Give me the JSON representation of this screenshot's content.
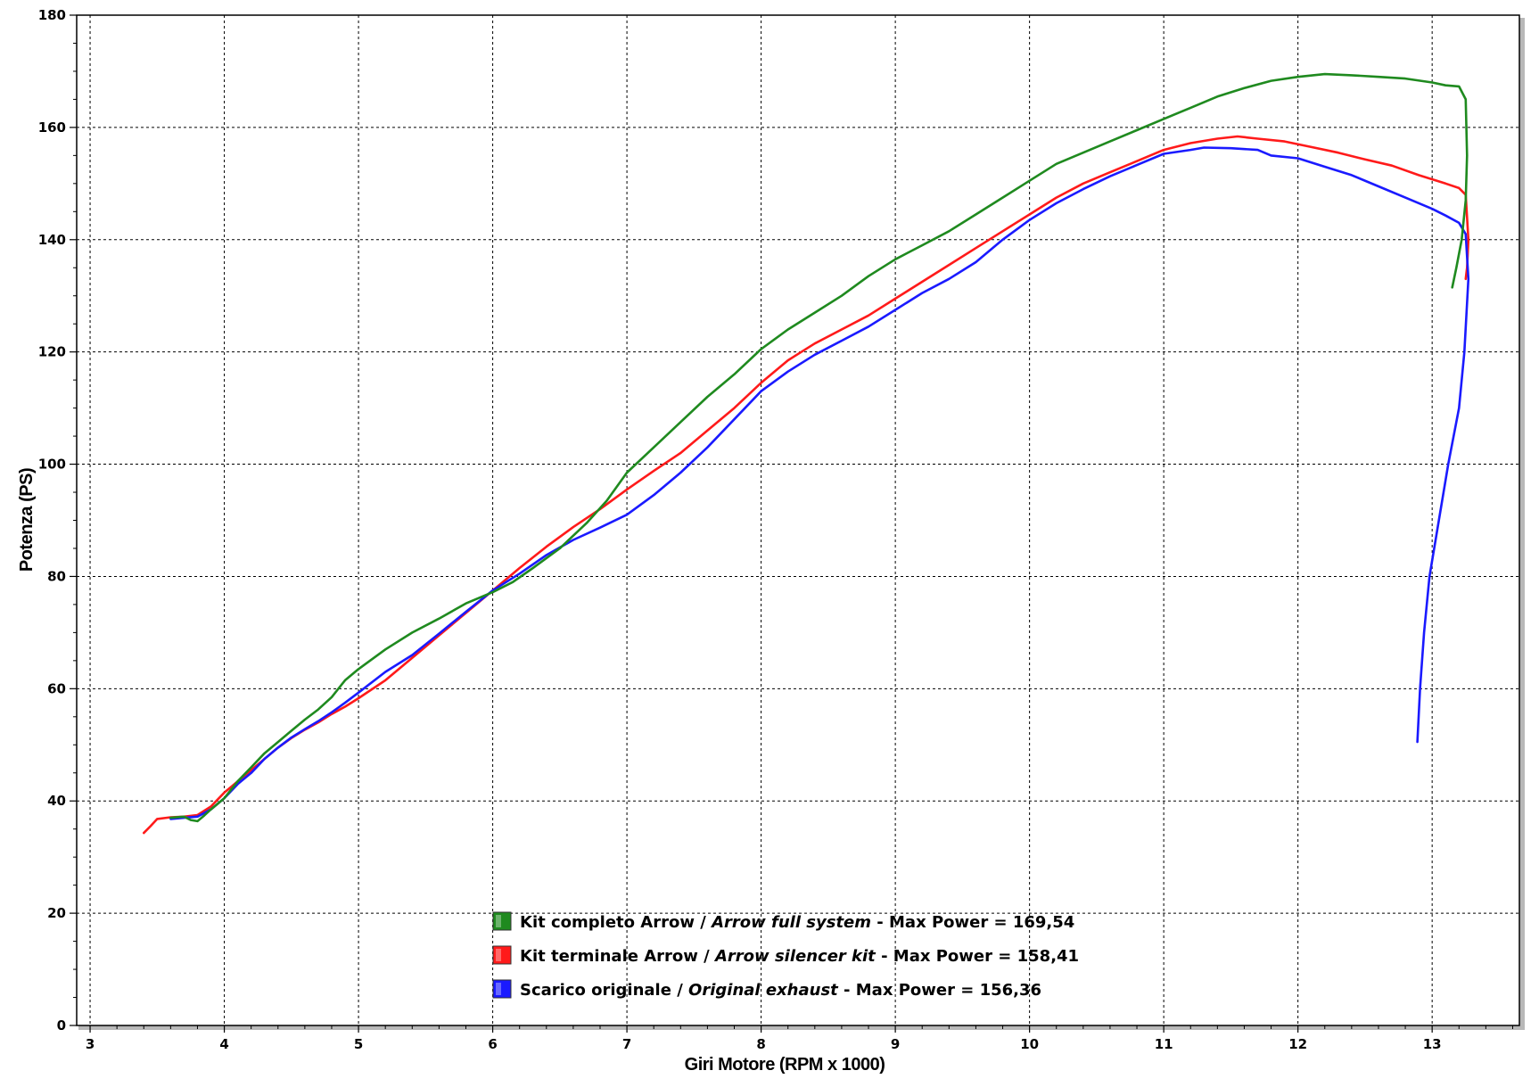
{
  "chart_data": {
    "type": "line",
    "xlabel": "Giri Motore (RPM x 1000)",
    "ylabel": "Potenza (PS)",
    "xlim": [
      2.9,
      13.65
    ],
    "ylim": [
      0,
      180
    ],
    "x_ticks": [
      3,
      4,
      5,
      6,
      7,
      8,
      9,
      10,
      11,
      12,
      13
    ],
    "y_ticks": [
      0,
      20,
      40,
      60,
      80,
      100,
      120,
      140,
      160,
      180
    ],
    "grid": true,
    "legend_position": "bottom-center",
    "series": [
      {
        "name": "Kit completo Arrow",
        "name_en": "Arrow full system",
        "max_label": "Max Power = 169,54",
        "color": "#1f8a1f",
        "points": [
          [
            3.6,
            37
          ],
          [
            3.7,
            37.2
          ],
          [
            3.75,
            36.6
          ],
          [
            3.8,
            36.4
          ],
          [
            3.85,
            37.4
          ],
          [
            3.9,
            38.5
          ],
          [
            4.0,
            40.5
          ],
          [
            4.1,
            43.5
          ],
          [
            4.2,
            46
          ],
          [
            4.3,
            48.5
          ],
          [
            4.4,
            50.5
          ],
          [
            4.5,
            52.5
          ],
          [
            4.6,
            54.5
          ],
          [
            4.7,
            56.3
          ],
          [
            4.8,
            58.5
          ],
          [
            4.9,
            61.5
          ],
          [
            5.0,
            63.5
          ],
          [
            5.2,
            67
          ],
          [
            5.4,
            70
          ],
          [
            5.6,
            72.5
          ],
          [
            5.8,
            75.2
          ],
          [
            6.0,
            77.2
          ],
          [
            6.15,
            79
          ],
          [
            6.3,
            81.5
          ],
          [
            6.5,
            85
          ],
          [
            6.7,
            89.5
          ],
          [
            6.85,
            93.5
          ],
          [
            7.0,
            98.5
          ],
          [
            7.2,
            103
          ],
          [
            7.4,
            107.5
          ],
          [
            7.6,
            112
          ],
          [
            7.8,
            116
          ],
          [
            8.0,
            120.5
          ],
          [
            8.2,
            124
          ],
          [
            8.4,
            127
          ],
          [
            8.6,
            130
          ],
          [
            8.8,
            133.5
          ],
          [
            9.0,
            136.5
          ],
          [
            9.2,
            139
          ],
          [
            9.4,
            141.5
          ],
          [
            9.6,
            144.5
          ],
          [
            9.8,
            147.5
          ],
          [
            10.0,
            150.5
          ],
          [
            10.2,
            153.5
          ],
          [
            10.4,
            155.5
          ],
          [
            10.6,
            157.5
          ],
          [
            10.8,
            159.5
          ],
          [
            11.0,
            161.5
          ],
          [
            11.2,
            163.5
          ],
          [
            11.4,
            165.5
          ],
          [
            11.6,
            167
          ],
          [
            11.8,
            168.3
          ],
          [
            12.0,
            169
          ],
          [
            12.2,
            169.5
          ],
          [
            12.4,
            169.3
          ],
          [
            12.6,
            169
          ],
          [
            12.8,
            168.7
          ],
          [
            13.0,
            168
          ],
          [
            13.1,
            167.5
          ],
          [
            13.2,
            167.3
          ],
          [
            13.25,
            165
          ],
          [
            13.26,
            155
          ],
          [
            13.25,
            147
          ],
          [
            13.22,
            140
          ],
          [
            13.18,
            135
          ],
          [
            13.15,
            131.5
          ]
        ]
      },
      {
        "name": "Kit terminale Arrow",
        "name_en": "Arrow silencer kit",
        "max_label": "Max Power = 158,41",
        "color": "#ff1a1a",
        "points": [
          [
            3.4,
            34.3
          ],
          [
            3.45,
            35.5
          ],
          [
            3.5,
            36.8
          ],
          [
            3.6,
            37.1
          ],
          [
            3.7,
            37.2
          ],
          [
            3.8,
            37.5
          ],
          [
            3.9,
            39
          ],
          [
            4.0,
            41.5
          ],
          [
            4.1,
            43.5
          ],
          [
            4.2,
            45.5
          ],
          [
            4.3,
            47.5
          ],
          [
            4.4,
            49.5
          ],
          [
            4.5,
            51.2
          ],
          [
            4.6,
            52.7
          ],
          [
            4.7,
            54
          ],
          [
            4.8,
            55.5
          ],
          [
            4.9,
            56.8
          ],
          [
            5.0,
            58.3
          ],
          [
            5.2,
            61.5
          ],
          [
            5.4,
            65.5
          ],
          [
            5.6,
            69.5
          ],
          [
            5.8,
            73.5
          ],
          [
            6.0,
            77.5
          ],
          [
            6.2,
            81.5
          ],
          [
            6.4,
            85.3
          ],
          [
            6.6,
            88.8
          ],
          [
            6.8,
            92
          ],
          [
            7.0,
            95.5
          ],
          [
            7.2,
            98.8
          ],
          [
            7.4,
            102
          ],
          [
            7.6,
            106
          ],
          [
            7.8,
            110
          ],
          [
            8.0,
            114.5
          ],
          [
            8.2,
            118.5
          ],
          [
            8.4,
            121.5
          ],
          [
            8.6,
            124
          ],
          [
            8.8,
            126.5
          ],
          [
            9.0,
            129.5
          ],
          [
            9.2,
            132.5
          ],
          [
            9.4,
            135.5
          ],
          [
            9.6,
            138.5
          ],
          [
            9.8,
            141.5
          ],
          [
            10.0,
            144.5
          ],
          [
            10.2,
            147.5
          ],
          [
            10.4,
            150
          ],
          [
            10.6,
            152
          ],
          [
            10.8,
            154
          ],
          [
            11.0,
            156
          ],
          [
            11.2,
            157.2
          ],
          [
            11.4,
            158
          ],
          [
            11.55,
            158.4
          ],
          [
            11.7,
            158
          ],
          [
            11.9,
            157.5
          ],
          [
            12.1,
            156.5
          ],
          [
            12.3,
            155.5
          ],
          [
            12.5,
            154.3
          ],
          [
            12.7,
            153.2
          ],
          [
            12.9,
            151.5
          ],
          [
            13.1,
            150
          ],
          [
            13.2,
            149.2
          ],
          [
            13.25,
            148
          ],
          [
            13.27,
            140
          ],
          [
            13.26,
            135
          ],
          [
            13.25,
            133
          ]
        ]
      },
      {
        "name": "Scarico originale",
        "name_en": "Original exhaust",
        "max_label": "Max Power = 156,36",
        "color": "#1a1aff",
        "points": [
          [
            3.6,
            36.8
          ],
          [
            3.7,
            37
          ],
          [
            3.8,
            37.2
          ],
          [
            3.9,
            38.5
          ],
          [
            4.0,
            40.5
          ],
          [
            4.1,
            43
          ],
          [
            4.2,
            45
          ],
          [
            4.3,
            47.5
          ],
          [
            4.4,
            49.5
          ],
          [
            4.5,
            51.3
          ],
          [
            4.6,
            52.8
          ],
          [
            4.7,
            54.2
          ],
          [
            4.8,
            55.8
          ],
          [
            4.9,
            57.5
          ],
          [
            5.0,
            59.3
          ],
          [
            5.2,
            63
          ],
          [
            5.4,
            66
          ],
          [
            5.6,
            69.8
          ],
          [
            5.8,
            73.7
          ],
          [
            6.0,
            77.5
          ],
          [
            6.2,
            80.5
          ],
          [
            6.4,
            83.8
          ],
          [
            6.6,
            86.5
          ],
          [
            6.8,
            88.7
          ],
          [
            7.0,
            91
          ],
          [
            7.2,
            94.5
          ],
          [
            7.4,
            98.5
          ],
          [
            7.6,
            103
          ],
          [
            7.8,
            108
          ],
          [
            8.0,
            113
          ],
          [
            8.2,
            116.5
          ],
          [
            8.4,
            119.5
          ],
          [
            8.6,
            122
          ],
          [
            8.8,
            124.5
          ],
          [
            9.0,
            127.5
          ],
          [
            9.2,
            130.5
          ],
          [
            9.4,
            133
          ],
          [
            9.6,
            136
          ],
          [
            9.8,
            140
          ],
          [
            10.0,
            143.5
          ],
          [
            10.2,
            146.5
          ],
          [
            10.4,
            149
          ],
          [
            10.6,
            151.3
          ],
          [
            10.8,
            153.3
          ],
          [
            11.0,
            155.3
          ],
          [
            11.2,
            156
          ],
          [
            11.3,
            156.4
          ],
          [
            11.5,
            156.3
          ],
          [
            11.7,
            156
          ],
          [
            11.8,
            155
          ],
          [
            12.0,
            154.5
          ],
          [
            12.2,
            153
          ],
          [
            12.4,
            151.5
          ],
          [
            12.6,
            149.5
          ],
          [
            12.8,
            147.5
          ],
          [
            13.0,
            145.5
          ],
          [
            13.1,
            144.3
          ],
          [
            13.2,
            143
          ],
          [
            13.25,
            141
          ],
          [
            13.27,
            133
          ],
          [
            13.24,
            120
          ],
          [
            13.2,
            110
          ],
          [
            13.12,
            100
          ],
          [
            13.05,
            90
          ],
          [
            12.98,
            80
          ],
          [
            12.94,
            70
          ],
          [
            12.91,
            60
          ],
          [
            12.89,
            50.5
          ]
        ]
      }
    ]
  }
}
